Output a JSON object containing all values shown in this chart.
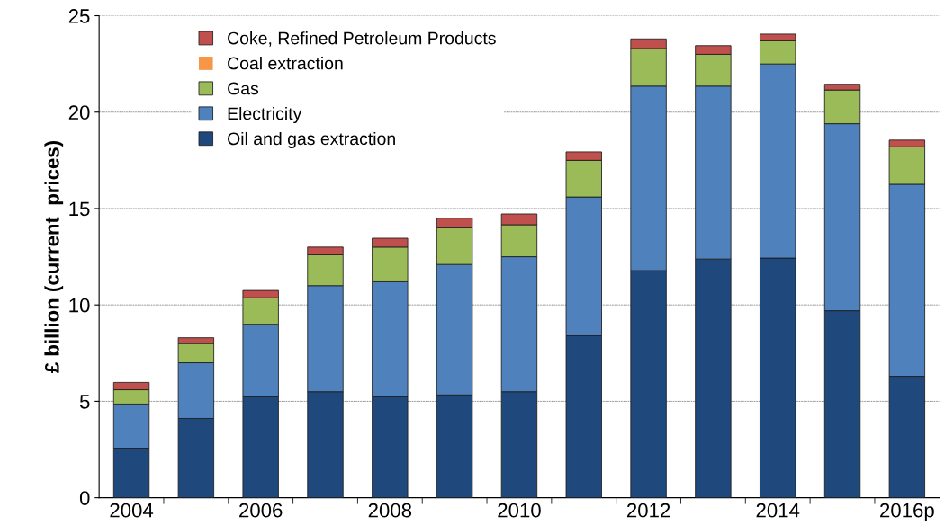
{
  "chart_data": {
    "type": "bar",
    "stacked": true,
    "ylabel": "£ billion (current  prices)",
    "categories": [
      "2004",
      null,
      "2006",
      null,
      "2008",
      null,
      "2010",
      null,
      "2012",
      null,
      "2014",
      null,
      "2016p"
    ],
    "series": [
      {
        "name": "Oil and gas extraction",
        "color": "#1f497d",
        "values": [
          2.57,
          4.11,
          5.23,
          5.5,
          5.23,
          5.33,
          5.5,
          8.4,
          11.78,
          12.38,
          12.43,
          9.7,
          6.3
        ]
      },
      {
        "name": "Electricity",
        "color": "#4f81bd",
        "values": [
          2.29,
          2.89,
          3.77,
          5.5,
          5.97,
          6.77,
          7.0,
          7.2,
          9.57,
          8.97,
          10.07,
          9.7,
          9.96
        ]
      },
      {
        "name": "Gas",
        "color": "#9bbb59",
        "values": [
          0.74,
          1.0,
          1.37,
          1.6,
          1.8,
          1.9,
          1.66,
          1.9,
          1.95,
          1.65,
          1.2,
          1.75,
          1.94
        ]
      },
      {
        "name": "Coal extraction",
        "color": "#f79646",
        "values": [
          0,
          0,
          0,
          0,
          0,
          0,
          0,
          0,
          0,
          0,
          0,
          0,
          0
        ]
      },
      {
        "name": "Coke, Refined Petroleum Products",
        "color": "#c0504d",
        "values": [
          0.38,
          0.3,
          0.38,
          0.4,
          0.46,
          0.5,
          0.56,
          0.44,
          0.5,
          0.45,
          0.35,
          0.3,
          0.35
        ]
      }
    ],
    "ylim": [
      0,
      25
    ],
    "yticks": [
      0,
      5,
      10,
      15,
      20,
      25
    ],
    "grid": "y",
    "legend": "top left"
  }
}
